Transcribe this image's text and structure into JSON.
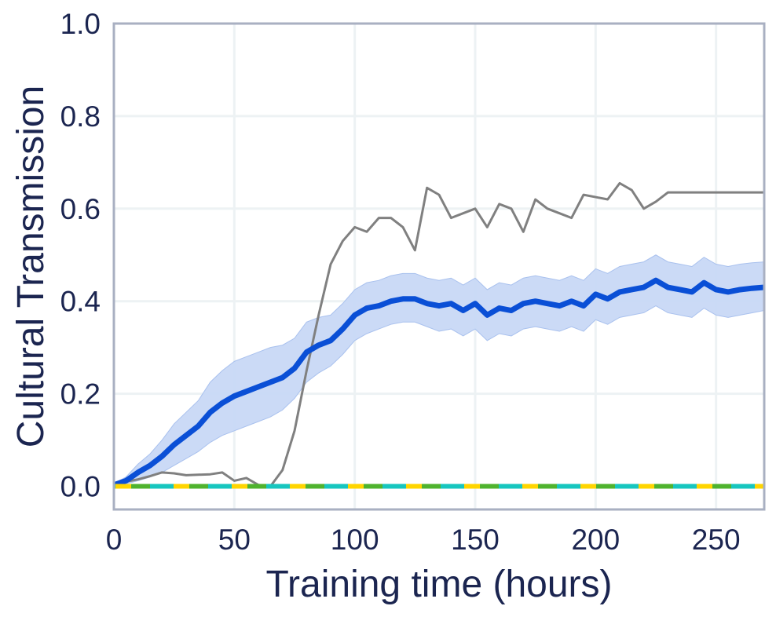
{
  "chart_data": {
    "type": "line",
    "xlabel": "Training time (hours)",
    "ylabel": "Cultural Transmission",
    "xlim": [
      0,
      270
    ],
    "ylim": [
      -0.05,
      1.0
    ],
    "xticks": [
      0,
      50,
      100,
      150,
      200,
      250
    ],
    "yticks": [
      0.0,
      0.2,
      0.4,
      0.6,
      0.8,
      1.0
    ],
    "xtick_labels": [
      "0",
      "50",
      "100",
      "150",
      "200",
      "250"
    ],
    "ytick_labels": [
      "0.0",
      "0.2",
      "0.4",
      "0.6",
      "0.8",
      "1.0"
    ],
    "grid": true,
    "colors": {
      "frame": "#a9b0c2",
      "grid": "#edf2f4",
      "text": "#1b2550",
      "band": "#c8d8f5"
    },
    "series": [
      {
        "color": "#808080",
        "style": "solid",
        "x": [
          0,
          5,
          10,
          15,
          20,
          25,
          30,
          35,
          40,
          45,
          50,
          55,
          60,
          65,
          70,
          75,
          80,
          85,
          90,
          95,
          100,
          105,
          110,
          115,
          120,
          125,
          130,
          135,
          140,
          145,
          150,
          155,
          160,
          165,
          170,
          175,
          180,
          185,
          190,
          195,
          200,
          205,
          210,
          215,
          220,
          225,
          230,
          235,
          240,
          245,
          250,
          255,
          260,
          265,
          270
        ],
        "y": [
          0.005,
          0.01,
          0.015,
          0.022,
          0.03,
          0.028,
          0.024,
          0.025,
          0.026,
          0.03,
          0.012,
          0.018,
          0.003,
          0.0,
          0.035,
          0.12,
          0.25,
          0.37,
          0.48,
          0.53,
          0.56,
          0.55,
          0.58,
          0.58,
          0.56,
          0.51,
          0.645,
          0.63,
          0.58,
          0.59,
          0.6,
          0.56,
          0.61,
          0.6,
          0.55,
          0.62,
          0.6,
          0.59,
          0.58,
          0.63,
          0.625,
          0.62,
          0.655,
          0.64,
          0.6,
          0.615,
          0.635,
          0.635,
          0.635,
          0.635,
          0.635,
          0.635,
          0.635,
          0.635,
          0.635
        ]
      },
      {
        "color": "#0a4fd6",
        "style": "solid",
        "x": [
          0,
          5,
          10,
          15,
          20,
          25,
          30,
          35,
          40,
          45,
          50,
          55,
          60,
          65,
          70,
          75,
          80,
          85,
          90,
          95,
          100,
          105,
          110,
          115,
          120,
          125,
          130,
          135,
          140,
          145,
          150,
          155,
          160,
          165,
          170,
          175,
          180,
          185,
          190,
          195,
          200,
          205,
          210,
          215,
          220,
          225,
          230,
          235,
          240,
          245,
          250,
          255,
          260,
          265,
          270
        ],
        "y": [
          0.003,
          0.012,
          0.03,
          0.045,
          0.065,
          0.09,
          0.11,
          0.13,
          0.16,
          0.18,
          0.195,
          0.205,
          0.215,
          0.225,
          0.235,
          0.255,
          0.29,
          0.305,
          0.315,
          0.34,
          0.37,
          0.385,
          0.39,
          0.4,
          0.405,
          0.405,
          0.395,
          0.39,
          0.395,
          0.38,
          0.395,
          0.37,
          0.385,
          0.38,
          0.395,
          0.4,
          0.395,
          0.39,
          0.4,
          0.39,
          0.415,
          0.405,
          0.42,
          0.425,
          0.43,
          0.445,
          0.43,
          0.425,
          0.42,
          0.44,
          0.425,
          0.42,
          0.425,
          0.428,
          0.43
        ],
        "lower": [
          0.0,
          0.005,
          0.012,
          0.02,
          0.03,
          0.045,
          0.06,
          0.075,
          0.095,
          0.11,
          0.12,
          0.13,
          0.14,
          0.15,
          0.165,
          0.19,
          0.225,
          0.245,
          0.26,
          0.285,
          0.315,
          0.33,
          0.34,
          0.35,
          0.355,
          0.355,
          0.345,
          0.335,
          0.34,
          0.325,
          0.34,
          0.315,
          0.33,
          0.325,
          0.34,
          0.345,
          0.34,
          0.335,
          0.345,
          0.335,
          0.36,
          0.35,
          0.365,
          0.37,
          0.375,
          0.39,
          0.375,
          0.37,
          0.365,
          0.385,
          0.37,
          0.365,
          0.37,
          0.375,
          0.38
        ],
        "upper": [
          0.006,
          0.02,
          0.048,
          0.07,
          0.1,
          0.135,
          0.16,
          0.185,
          0.225,
          0.25,
          0.27,
          0.28,
          0.29,
          0.3,
          0.305,
          0.32,
          0.355,
          0.365,
          0.37,
          0.395,
          0.425,
          0.44,
          0.445,
          0.455,
          0.46,
          0.46,
          0.45,
          0.445,
          0.45,
          0.435,
          0.45,
          0.425,
          0.44,
          0.435,
          0.45,
          0.455,
          0.45,
          0.445,
          0.455,
          0.445,
          0.47,
          0.46,
          0.475,
          0.48,
          0.485,
          0.5,
          0.485,
          0.48,
          0.475,
          0.495,
          0.48,
          0.475,
          0.48,
          0.483,
          0.485
        ]
      },
      {
        "color": "#7ccf8c",
        "style": "solid",
        "x": [
          0,
          270
        ],
        "y": [
          0.0,
          0.0
        ]
      },
      {
        "color": "#ffd500",
        "style": "dashed",
        "x": [
          0,
          270
        ],
        "y": [
          0.0,
          0.0
        ]
      },
      {
        "color": "#4fb32e",
        "style": "dashed",
        "x": [
          0,
          270
        ],
        "y": [
          0.0,
          0.0
        ]
      },
      {
        "color": "#17c6bf",
        "style": "dashed",
        "x": [
          0,
          270
        ],
        "y": [
          0.0,
          0.0
        ]
      }
    ]
  }
}
